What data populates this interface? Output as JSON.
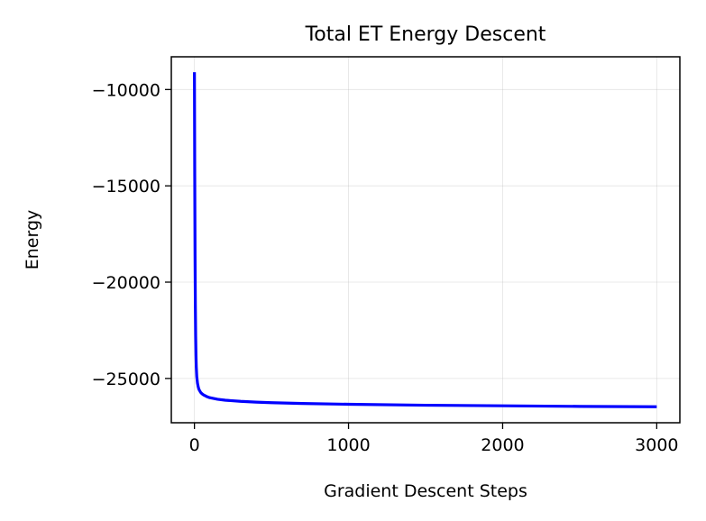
{
  "chart_data": {
    "type": "line",
    "title": "Total ET Energy Descent",
    "xlabel": "Gradient Descent Steps",
    "ylabel": "Energy",
    "xlim": [
      -150,
      3150
    ],
    "ylim": [
      -27300,
      -8300
    ],
    "xticks": [
      0,
      1000,
      2000,
      3000
    ],
    "yticks": [
      -10000,
      -15000,
      -20000,
      -25000
    ],
    "xtick_labels": [
      "0",
      "1000",
      "2000",
      "3000"
    ],
    "ytick_labels": [
      "−10000",
      "−15000",
      "−20000",
      "−25000"
    ],
    "grid": true,
    "series": [
      {
        "color": "#0000ff",
        "x": [
          0,
          2,
          4,
          6,
          8,
          10,
          12,
          15,
          20,
          25,
          30,
          40,
          50,
          60,
          80,
          100,
          150,
          200,
          300,
          400,
          500,
          700,
          1000,
          1500,
          2000,
          2500,
          3000
        ],
        "y": [
          -9100,
          -14500,
          -18600,
          -21200,
          -22800,
          -23800,
          -24400,
          -24900,
          -25250,
          -25450,
          -25580,
          -25720,
          -25800,
          -25860,
          -25940,
          -26000,
          -26080,
          -26130,
          -26190,
          -26230,
          -26260,
          -26300,
          -26340,
          -26390,
          -26420,
          -26450,
          -26470
        ]
      }
    ]
  }
}
